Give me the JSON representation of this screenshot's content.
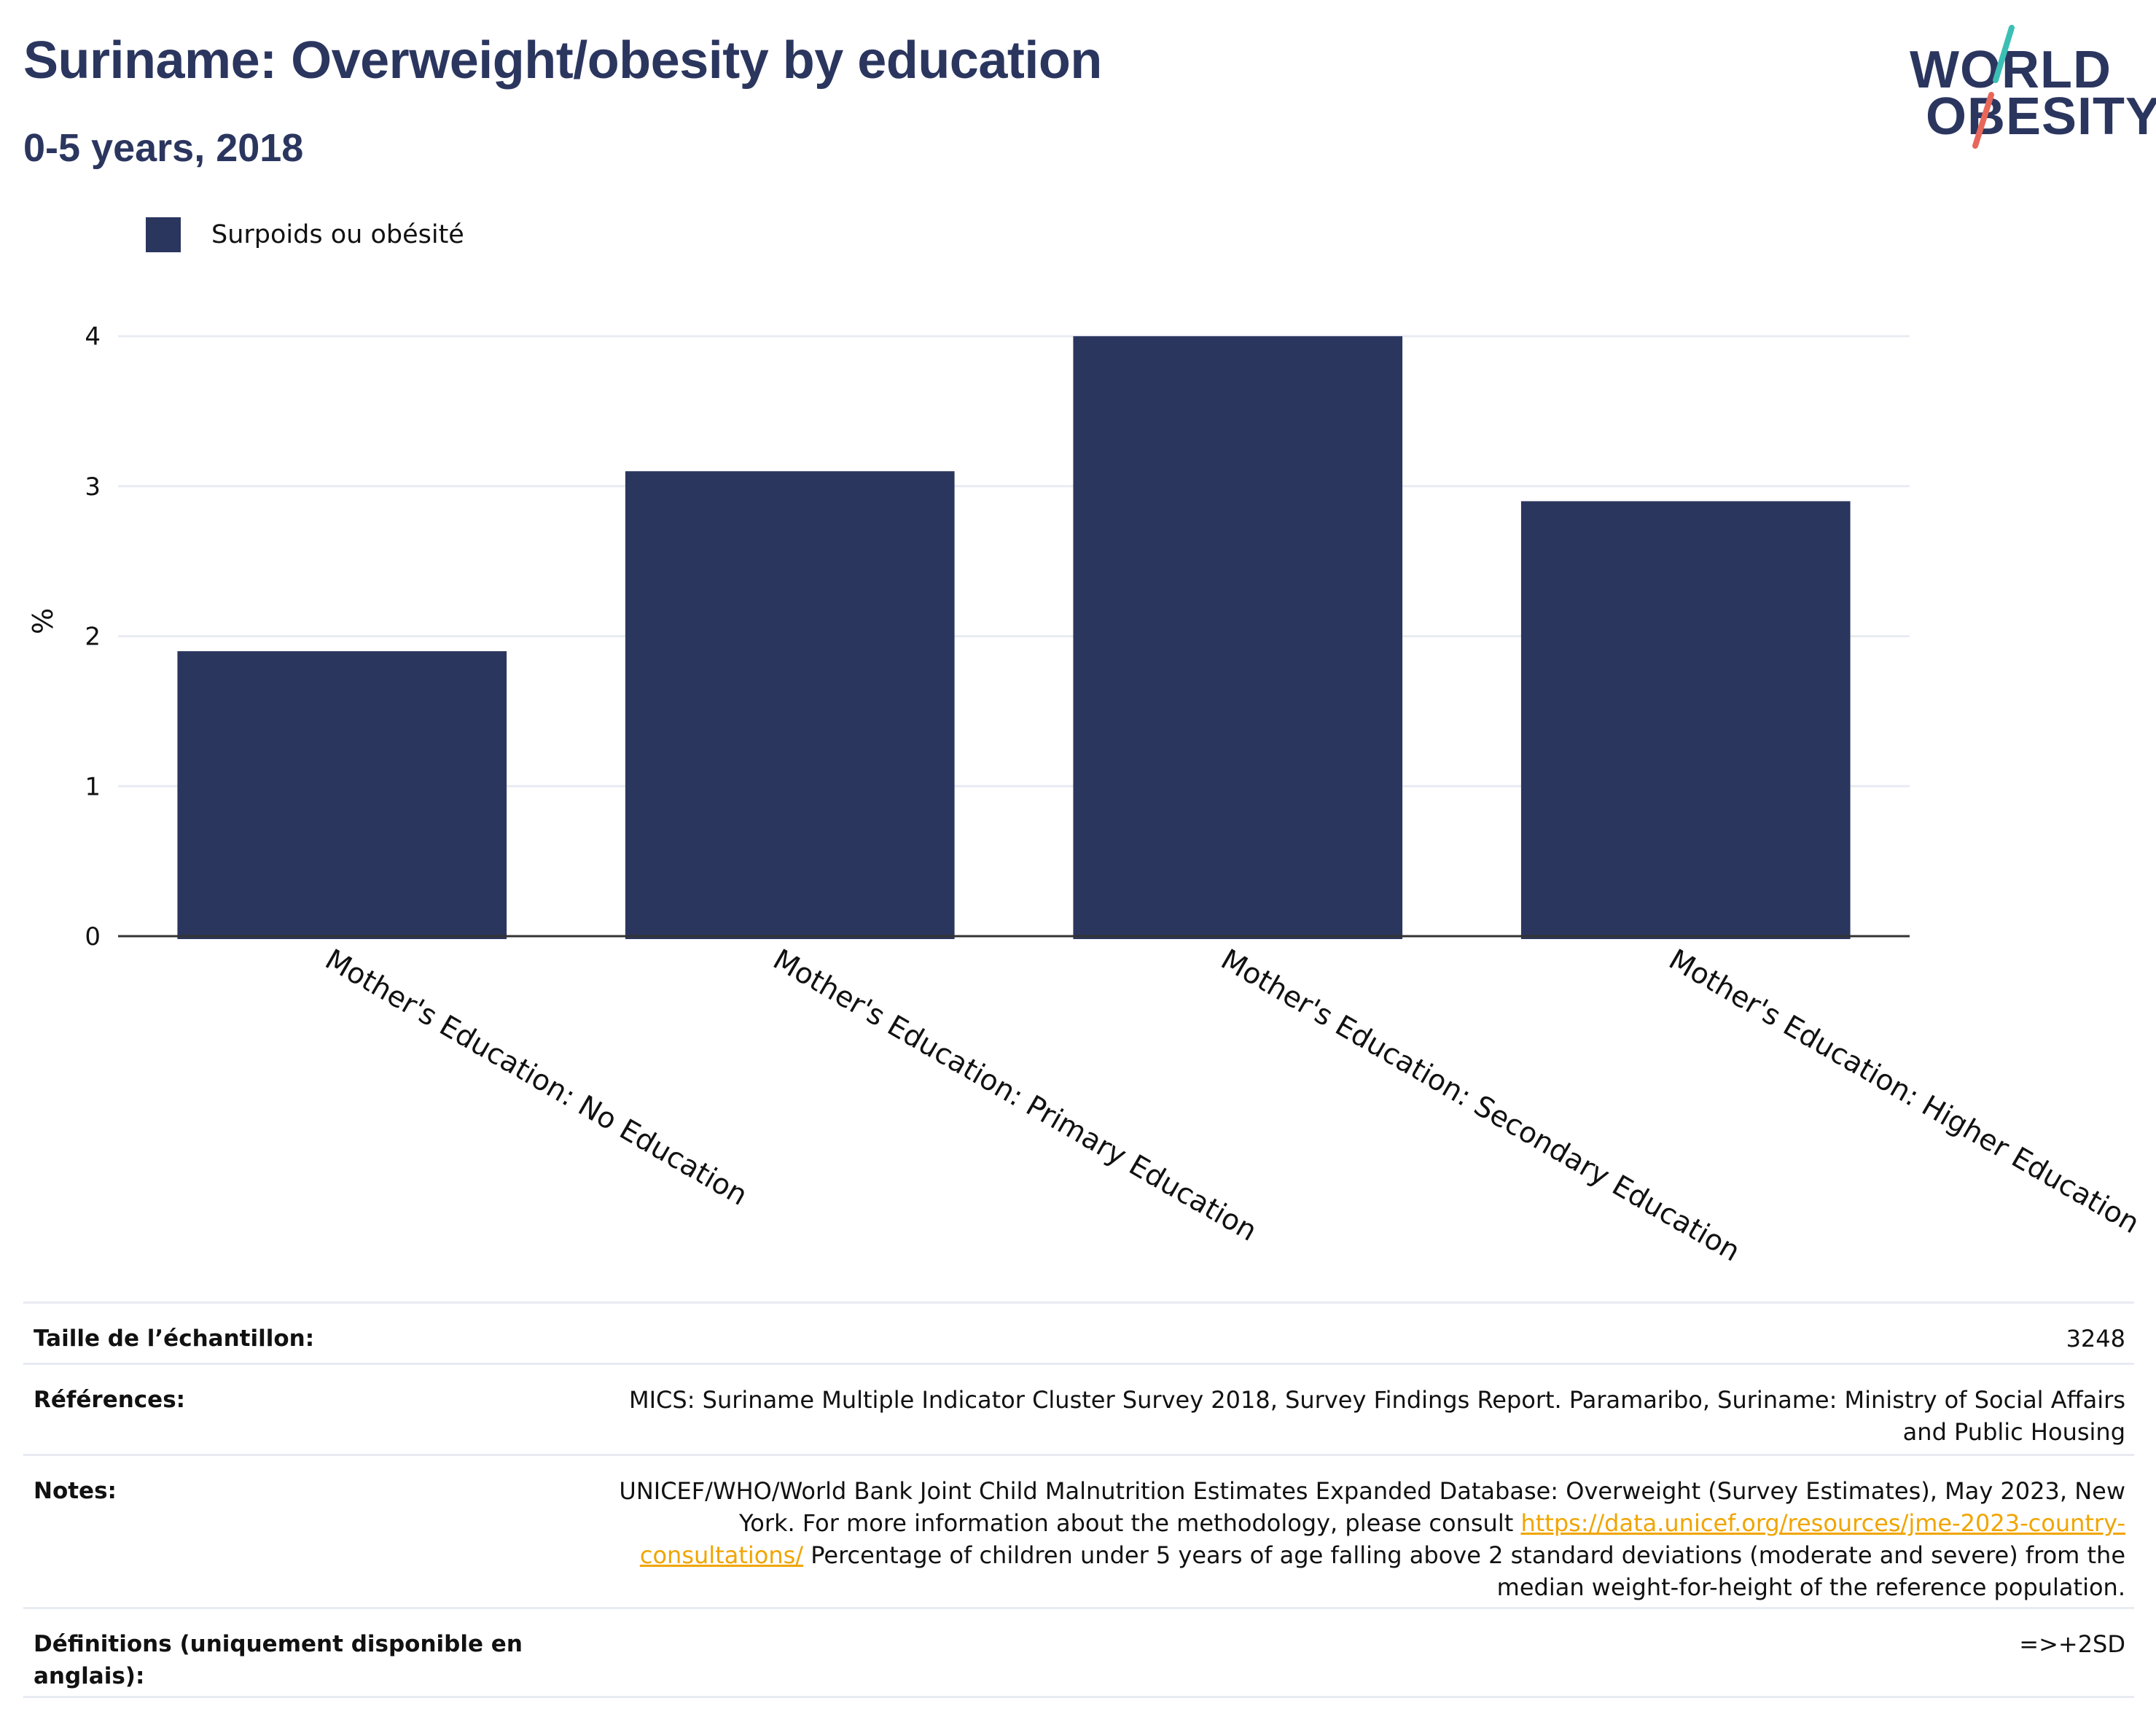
{
  "title": "Suriname: Overweight/obesity by education",
  "subtitle": "0-5 years, 2018",
  "logo": {
    "line1": "WORLD",
    "line2": "OBESITY",
    "colors": {
      "text": "#2b365f",
      "teal": "#3bbfb5",
      "coral": "#e8675a"
    }
  },
  "colors": {
    "bar": "#2b365f",
    "grid": "#e8ebf2",
    "axis": "#333333",
    "link": "#f0a500",
    "title": "#2b365f"
  },
  "chart_data": {
    "type": "bar",
    "categories": [
      "Mother's Education: No Education",
      "Mother's Education: Primary Education",
      "Mother's Education: Secondary Education",
      "Mother's Education: Higher Education"
    ],
    "series": [
      {
        "name": "Surpoids ou obésité",
        "values": [
          1.9,
          3.1,
          4.0,
          2.9
        ]
      }
    ],
    "title": "Suriname: Overweight/obesity by education",
    "subtitle": "0-5 years, 2018",
    "xlabel": "",
    "ylabel": "%",
    "ylim": [
      0,
      4.2
    ],
    "yticks": [
      0,
      1,
      2,
      3,
      4
    ],
    "grid": true,
    "legend_position": "top-left"
  },
  "info": [
    {
      "label": "Taille de l’échantillon:",
      "value": "3248"
    },
    {
      "label": "Références:",
      "value": "MICS: Suriname Multiple Indicator Cluster Survey 2018, Survey Findings Report. Paramaribo, Suriname: Ministry of Social Affairs and Public Housing"
    },
    {
      "label": "Notes:",
      "value_before_link": "UNICEF/WHO/World Bank Joint Child Malnutrition Estimates Expanded Database: Overweight (Survey Estimates), May 2023, New York. For more information about the methodology, please consult ",
      "link": "https://data.unicef.org/resources/jme-2023-country-consultations/",
      "value_after_link": " Percentage of children under 5 years of age falling above 2 standard deviations (moderate and severe) from the median weight-for-height of the reference population."
    },
    {
      "label": "Définitions (uniquement disponible en anglais):",
      "value": "=>+2SD"
    }
  ]
}
